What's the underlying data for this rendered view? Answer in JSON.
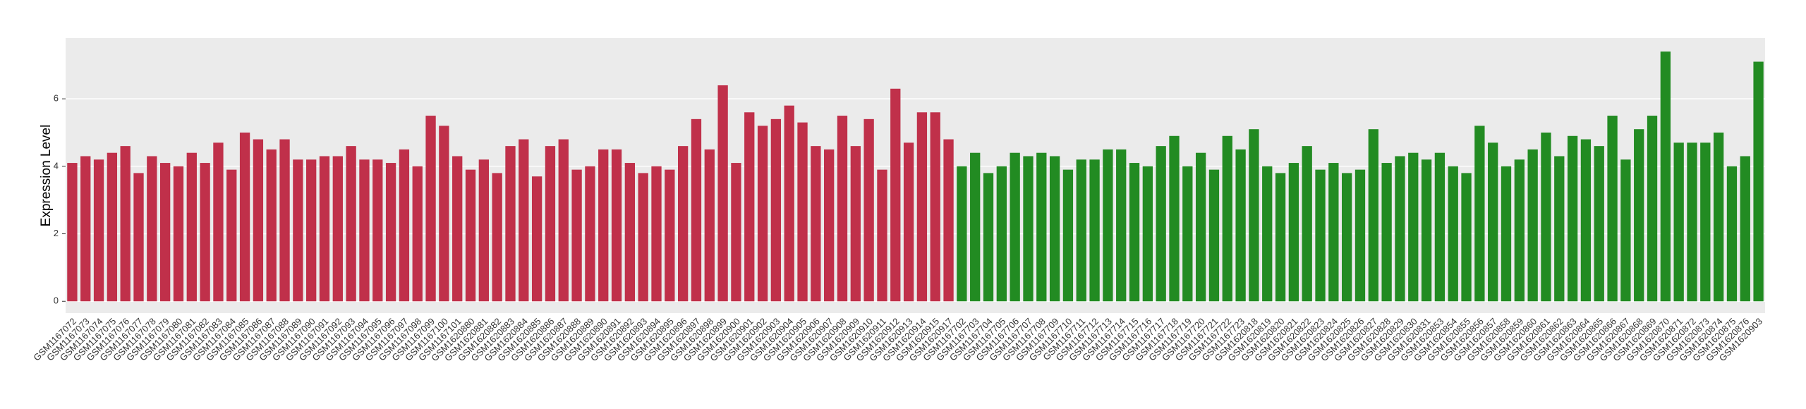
{
  "chart_data": {
    "type": "bar",
    "y_label": "Expression Level",
    "categories": [
      "GSM1167072",
      "GSM1167073",
      "GSM1167074",
      "GSM1167075",
      "GSM1167076",
      "GSM1167077",
      "GSM1167078",
      "GSM1167079",
      "GSM1167080",
      "GSM1167081",
      "GSM1167082",
      "GSM1167083",
      "GSM1167084",
      "GSM1167085",
      "GSM1167086",
      "GSM1167087",
      "GSM1167088",
      "GSM1167089",
      "GSM1167090",
      "GSM1167091",
      "GSM1167092",
      "GSM1167093",
      "GSM1167094",
      "GSM1167095",
      "GSM1167096",
      "GSM1167097",
      "GSM1167098",
      "GSM1167099",
      "GSM1167100",
      "GSM1167101",
      "GSM1620880",
      "GSM1620881",
      "GSM1620882",
      "GSM1620883",
      "GSM1620884",
      "GSM1620885",
      "GSM1620886",
      "GSM1620887",
      "GSM1620888",
      "GSM1620889",
      "GSM1620890",
      "GSM1620891",
      "GSM1620892",
      "GSM1620893",
      "GSM1620894",
      "GSM1620895",
      "GSM1620896",
      "GSM1620897",
      "GSM1620898",
      "GSM1620899",
      "GSM1620900",
      "GSM1620901",
      "GSM1620902",
      "GSM1620903",
      "GSM1620904",
      "GSM1620905",
      "GSM1620906",
      "GSM1620907",
      "GSM1620908",
      "GSM1620909",
      "GSM1620910",
      "GSM1620911",
      "GSM1620912",
      "GSM1620913",
      "GSM1620914",
      "GSM1620915",
      "GSM1620917",
      "GSM1167702",
      "GSM1167703",
      "GSM1167704",
      "GSM1167705",
      "GSM1167706",
      "GSM1167707",
      "GSM1167708",
      "GSM1167709",
      "GSM1167710",
      "GSM1167711",
      "GSM1167712",
      "GSM1167713",
      "GSM1167714",
      "GSM1167715",
      "GSM1167716",
      "GSM1167717",
      "GSM1167718",
      "GSM1167719",
      "GSM1167720",
      "GSM1167721",
      "GSM1167722",
      "GSM1167723",
      "GSM1620818",
      "GSM1620819",
      "GSM1620820",
      "GSM1620821",
      "GSM1620822",
      "GSM1620823",
      "GSM1620824",
      "GSM1620825",
      "GSM1620826",
      "GSM1620827",
      "GSM1620828",
      "GSM1620829",
      "GSM1620830",
      "GSM1620831",
      "GSM1620853",
      "GSM1620854",
      "GSM1620855",
      "GSM1620856",
      "GSM1620857",
      "GSM1620858",
      "GSM1620859",
      "GSM1620860",
      "GSM1620861",
      "GSM1620862",
      "GSM1620863",
      "GSM1620864",
      "GSM1620865",
      "GSM1620866",
      "GSM1620867",
      "GSM1620868",
      "GSM1620869",
      "GSM1620870",
      "GSM1620871",
      "GSM1620872",
      "GSM1620873",
      "GSM1620874",
      "GSM1620875",
      "GSM1620876",
      "GSM1620903"
    ],
    "values": [
      4.1,
      4.3,
      4.2,
      4.4,
      4.6,
      3.8,
      4.3,
      4.1,
      4.0,
      4.4,
      4.1,
      4.7,
      3.9,
      5.0,
      4.8,
      4.5,
      4.8,
      4.2,
      4.2,
      4.3,
      4.3,
      4.6,
      4.2,
      4.2,
      4.1,
      4.5,
      4.0,
      5.5,
      5.2,
      4.3,
      3.9,
      4.2,
      3.8,
      4.6,
      4.8,
      3.7,
      4.6,
      4.8,
      3.9,
      4.0,
      4.5,
      4.5,
      4.1,
      3.8,
      4.0,
      3.9,
      4.6,
      5.4,
      4.5,
      6.4,
      4.1,
      5.6,
      5.2,
      5.4,
      5.8,
      5.3,
      4.6,
      4.5,
      5.5,
      4.6,
      5.4,
      3.9,
      6.3,
      4.7,
      5.6,
      5.6,
      4.8,
      4.0,
      4.4,
      3.8,
      4.0,
      4.4,
      4.3,
      4.4,
      4.3,
      3.9,
      4.2,
      4.2,
      4.5,
      4.5,
      4.1,
      4.0,
      4.6,
      4.9,
      4.0,
      4.4,
      3.9,
      4.9,
      4.5,
      5.1,
      4.0,
      3.8,
      4.1,
      4.6,
      3.9,
      4.1,
      3.8,
      3.9,
      5.1,
      4.1,
      4.3,
      4.4,
      4.2,
      4.4,
      4.0,
      3.8,
      5.2,
      4.7,
      4.0,
      4.2,
      4.5,
      5.0,
      4.3,
      4.9,
      4.8,
      4.6,
      5.5,
      4.2,
      5.1,
      5.5,
      7.4,
      4.7,
      4.7,
      4.7,
      5.0,
      4.0,
      4.3,
      7.1
    ],
    "group_colors": [
      "#c0304a",
      "#228b22"
    ],
    "group_sizes": [
      67,
      61
    ],
    "ylim": [
      -0.35,
      7.8
    ],
    "yticks": [
      0,
      2,
      4,
      6
    ],
    "grid": true
  }
}
